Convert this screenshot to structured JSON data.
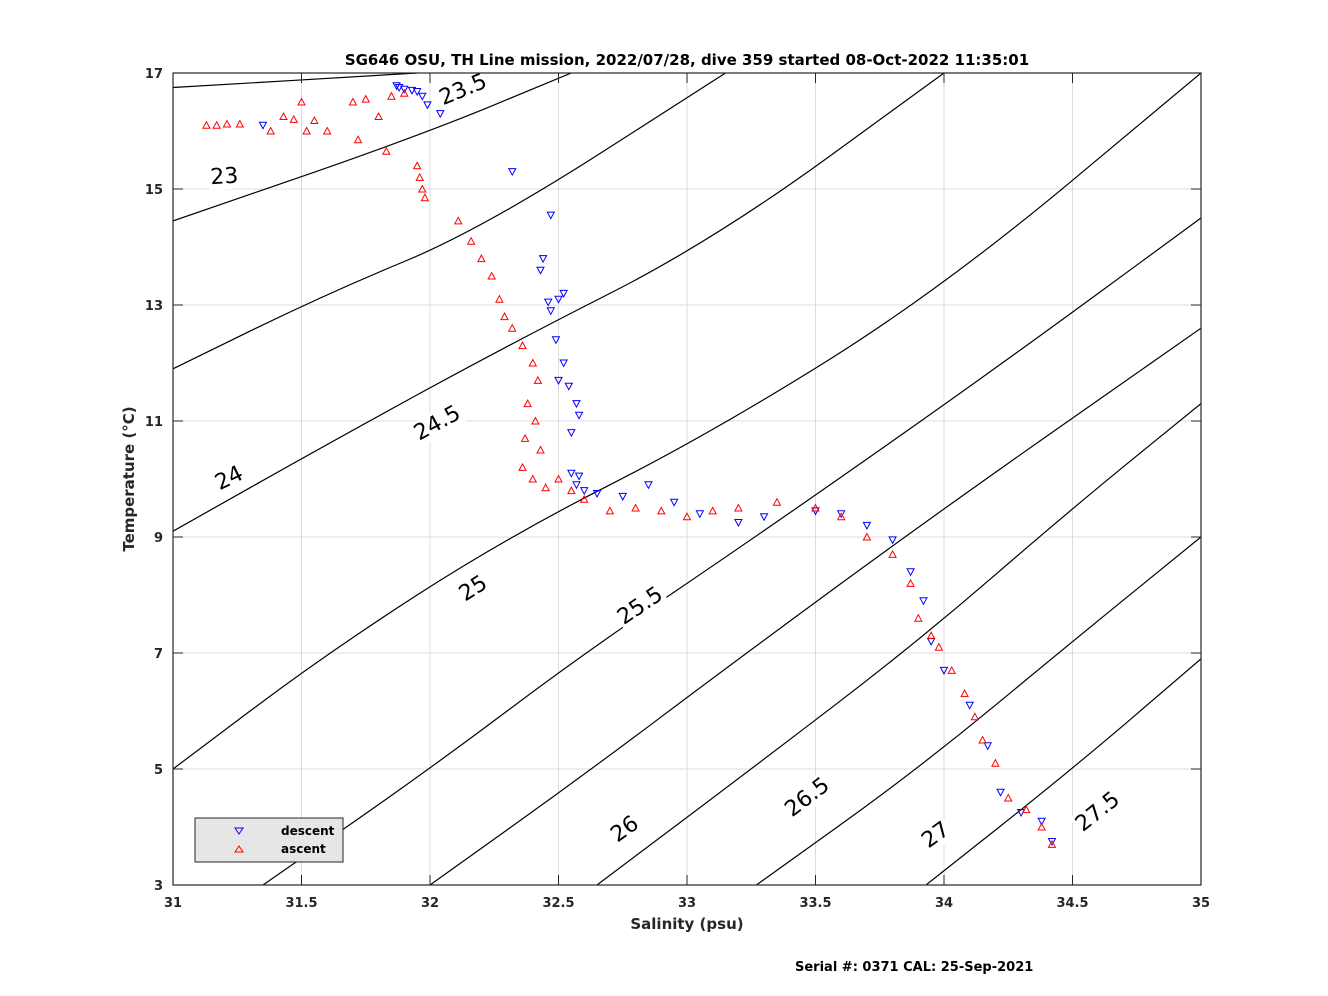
{
  "chart_data": {
    "type": "scatter",
    "title": "SG646 OSU, TH Line mission, 2022/07/28, dive 359 started 08-Oct-2022 11:35:01",
    "xlabel": "Salinity (psu)",
    "ylabel": "Temperature (°C)",
    "xlim": [
      31,
      35
    ],
    "ylim": [
      3,
      17
    ],
    "x_ticks": [
      "31",
      "31.5",
      "32",
      "32.5",
      "33",
      "33.5",
      "34",
      "34.5",
      "35"
    ],
    "y_ticks": [
      "3",
      "5",
      "7",
      "9",
      "11",
      "13",
      "15",
      "17"
    ],
    "grid": true,
    "legend_position": "bottom-left",
    "footer": "Serial #: 0371  CAL: 25-Sep-2021",
    "colors": {
      "descent": "#0000ff",
      "ascent": "#ff0000",
      "contour": "#000000",
      "grid": "#dcdcdc"
    },
    "contours": [
      {
        "sigma": 23,
        "points": [
          [
            31.0,
            16.75
          ],
          [
            31.95,
            17.0
          ]
        ],
        "label": "23",
        "label_at": [
          31.2,
          15.2
        ]
      },
      {
        "sigma": 23.5,
        "points": [
          [
            31.0,
            14.45
          ],
          [
            31.95,
            15.9
          ],
          [
            32.55,
            17.0
          ]
        ],
        "label": "23.5",
        "label_at": [
          32.13,
          16.7
        ]
      },
      {
        "sigma": 24,
        "points": [
          [
            31.0,
            11.9
          ],
          [
            31.6,
            13.2
          ],
          [
            32.2,
            14.3
          ],
          [
            33.15,
            17.0
          ]
        ],
        "label": "24",
        "label_at": [
          31.22,
          10.0
        ]
      },
      {
        "sigma": 24.5,
        "points": [
          [
            31.0,
            9.1
          ],
          [
            31.6,
            10.6
          ],
          [
            32.3,
            12.3
          ],
          [
            33.1,
            14.1
          ],
          [
            34.0,
            17.0
          ]
        ],
        "label": "24.5",
        "label_at": [
          32.03,
          10.95
        ]
      },
      {
        "sigma": 25,
        "points": [
          [
            31.0,
            5.0
          ],
          [
            31.6,
            7.0
          ],
          [
            32.3,
            9.0
          ],
          [
            33.1,
            10.8
          ],
          [
            34.0,
            13.3
          ],
          [
            35.0,
            17.0
          ]
        ],
        "label": "25",
        "label_at": [
          32.17,
          8.1
        ]
      },
      {
        "sigma": 25.5,
        "points": [
          [
            31.35,
            3.0
          ],
          [
            32.0,
            5.0
          ],
          [
            32.6,
            7.0
          ],
          [
            33.3,
            9.1
          ],
          [
            34.2,
            11.9
          ],
          [
            35.0,
            14.5
          ]
        ],
        "label": "25.5",
        "label_at": [
          32.82,
          7.8
        ]
      },
      {
        "sigma": 26,
        "points": [
          [
            32.0,
            3.0
          ],
          [
            32.6,
            4.9
          ],
          [
            33.2,
            6.9
          ],
          [
            34.0,
            9.5
          ],
          [
            35.0,
            12.6
          ]
        ],
        "label": "26",
        "label_at": [
          32.76,
          3.95
        ]
      },
      {
        "sigma": 26.5,
        "points": [
          [
            32.65,
            3.0
          ],
          [
            33.25,
            5.0
          ],
          [
            33.9,
            7.2
          ],
          [
            34.5,
            9.5
          ],
          [
            35.0,
            11.3
          ]
        ],
        "label": "26.5",
        "label_at": [
          33.47,
          4.5
        ]
      },
      {
        "sigma": 27,
        "points": [
          [
            33.27,
            3.0
          ],
          [
            33.9,
            5.0
          ],
          [
            34.5,
            7.2
          ],
          [
            35.0,
            9.0
          ]
        ],
        "label": "27",
        "label_at": [
          33.97,
          3.85
        ]
      },
      {
        "sigma": 27.5,
        "points": [
          [
            33.93,
            3.0
          ],
          [
            34.5,
            5.0
          ],
          [
            35.0,
            6.9
          ]
        ],
        "label": "27.5",
        "label_at": [
          34.6,
          4.25
        ]
      }
    ],
    "series": [
      {
        "name": "descent",
        "marker": "triangle-down",
        "points": [
          [
            31.35,
            16.1
          ],
          [
            31.87,
            16.78
          ],
          [
            31.88,
            16.75
          ],
          [
            31.9,
            16.72
          ],
          [
            31.93,
            16.7
          ],
          [
            31.95,
            16.68
          ],
          [
            31.97,
            16.6
          ],
          [
            31.99,
            16.45
          ],
          [
            32.04,
            16.3
          ],
          [
            32.32,
            15.3
          ],
          [
            32.47,
            14.55
          ],
          [
            32.44,
            13.8
          ],
          [
            32.43,
            13.6
          ],
          [
            32.46,
            13.05
          ],
          [
            32.5,
            13.1
          ],
          [
            32.52,
            13.2
          ],
          [
            32.47,
            12.9
          ],
          [
            32.49,
            12.4
          ],
          [
            32.52,
            12.0
          ],
          [
            32.5,
            11.7
          ],
          [
            32.54,
            11.6
          ],
          [
            32.57,
            11.3
          ],
          [
            32.58,
            11.1
          ],
          [
            32.55,
            10.8
          ],
          [
            32.55,
            10.1
          ],
          [
            32.58,
            10.05
          ],
          [
            32.57,
            9.9
          ],
          [
            32.6,
            9.8
          ],
          [
            32.65,
            9.75
          ],
          [
            32.75,
            9.7
          ],
          [
            32.85,
            9.9
          ],
          [
            32.95,
            9.6
          ],
          [
            33.05,
            9.4
          ],
          [
            33.2,
            9.25
          ],
          [
            33.3,
            9.35
          ],
          [
            33.5,
            9.45
          ],
          [
            33.6,
            9.4
          ],
          [
            33.7,
            9.2
          ],
          [
            33.8,
            8.95
          ],
          [
            33.87,
            8.4
          ],
          [
            33.92,
            7.9
          ],
          [
            33.95,
            7.2
          ],
          [
            34.0,
            6.7
          ],
          [
            34.1,
            6.1
          ],
          [
            34.17,
            5.4
          ],
          [
            34.22,
            4.6
          ],
          [
            34.3,
            4.25
          ],
          [
            34.38,
            4.1
          ],
          [
            34.42,
            3.75
          ]
        ]
      },
      {
        "name": "ascent",
        "marker": "triangle-up",
        "points": [
          [
            31.13,
            16.1
          ],
          [
            31.17,
            16.1
          ],
          [
            31.21,
            16.12
          ],
          [
            31.26,
            16.12
          ],
          [
            31.38,
            16.0
          ],
          [
            31.43,
            16.25
          ],
          [
            31.47,
            16.2
          ],
          [
            31.5,
            16.5
          ],
          [
            31.52,
            16.0
          ],
          [
            31.55,
            16.18
          ],
          [
            31.6,
            16.0
          ],
          [
            31.7,
            16.5
          ],
          [
            31.72,
            15.85
          ],
          [
            31.75,
            16.55
          ],
          [
            31.8,
            16.25
          ],
          [
            31.83,
            15.65
          ],
          [
            31.85,
            16.6
          ],
          [
            31.9,
            16.65
          ],
          [
            31.95,
            15.4
          ],
          [
            31.96,
            15.2
          ],
          [
            31.97,
            15.0
          ],
          [
            31.98,
            14.85
          ],
          [
            32.11,
            14.45
          ],
          [
            32.16,
            14.1
          ],
          [
            32.2,
            13.8
          ],
          [
            32.24,
            13.5
          ],
          [
            32.27,
            13.1
          ],
          [
            32.29,
            12.8
          ],
          [
            32.32,
            12.6
          ],
          [
            32.36,
            12.3
          ],
          [
            32.4,
            12.0
          ],
          [
            32.42,
            11.7
          ],
          [
            32.38,
            11.3
          ],
          [
            32.41,
            11.0
          ],
          [
            32.37,
            10.7
          ],
          [
            32.43,
            10.5
          ],
          [
            32.36,
            10.2
          ],
          [
            32.4,
            10.0
          ],
          [
            32.45,
            9.85
          ],
          [
            32.5,
            10.0
          ],
          [
            32.55,
            9.8
          ],
          [
            32.6,
            9.65
          ],
          [
            32.7,
            9.45
          ],
          [
            32.8,
            9.5
          ],
          [
            32.9,
            9.45
          ],
          [
            33.0,
            9.35
          ],
          [
            33.1,
            9.45
          ],
          [
            33.2,
            9.5
          ],
          [
            33.35,
            9.6
          ],
          [
            33.5,
            9.5
          ],
          [
            33.6,
            9.35
          ],
          [
            33.7,
            9.0
          ],
          [
            33.8,
            8.7
          ],
          [
            33.87,
            8.2
          ],
          [
            33.9,
            7.6
          ],
          [
            33.95,
            7.3
          ],
          [
            33.98,
            7.1
          ],
          [
            34.03,
            6.7
          ],
          [
            34.08,
            6.3
          ],
          [
            34.12,
            5.9
          ],
          [
            34.15,
            5.5
          ],
          [
            34.2,
            5.1
          ],
          [
            34.25,
            4.5
          ],
          [
            34.32,
            4.3
          ],
          [
            34.38,
            4.0
          ],
          [
            34.42,
            3.7
          ]
        ]
      }
    ]
  }
}
